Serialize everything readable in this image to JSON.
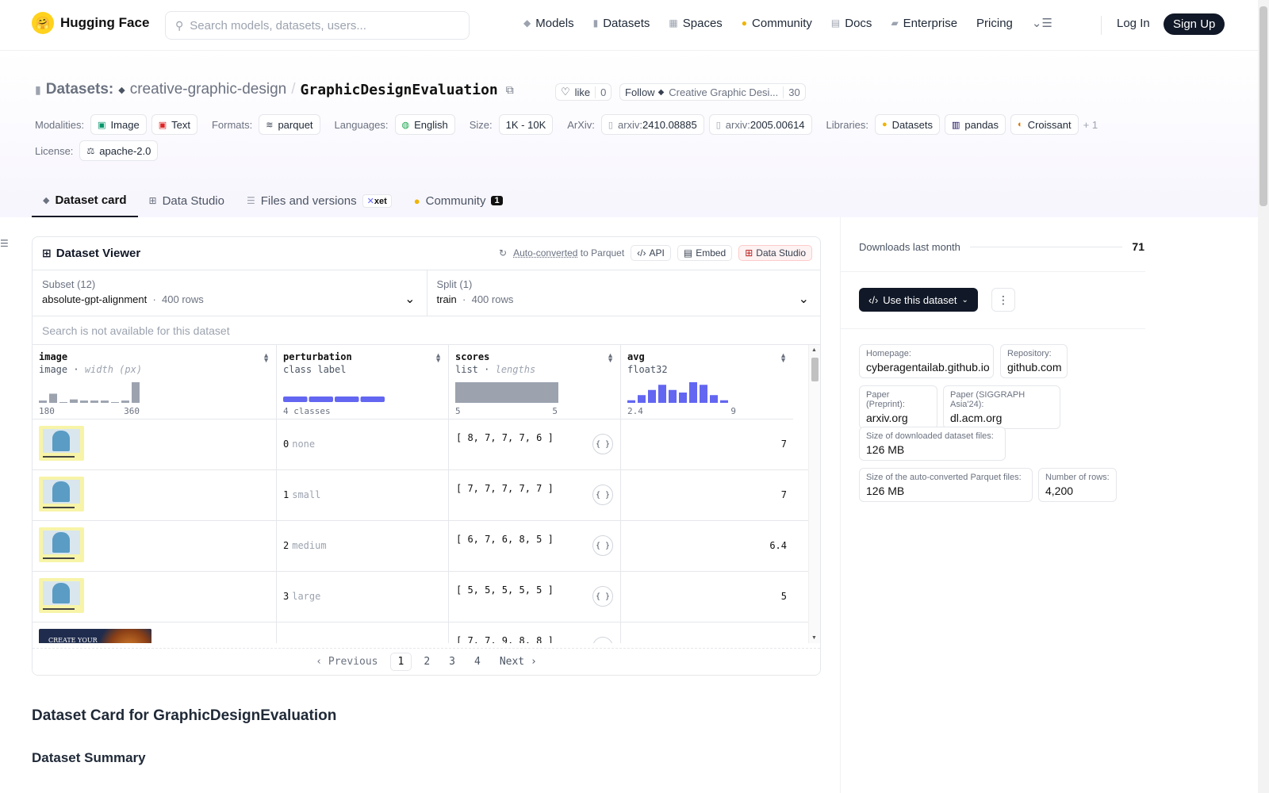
{
  "nav": {
    "brand": "Hugging Face",
    "search_placeholder": "Search models, datasets, users...",
    "links": [
      "Models",
      "Datasets",
      "Spaces",
      "Community",
      "Docs",
      "Enterprise",
      "Pricing"
    ],
    "login": "Log In",
    "signup": "Sign Up"
  },
  "repo": {
    "type_label": "Datasets:",
    "org": "creative-graphic-design",
    "name": "GraphicDesignEvaluation",
    "like_label": "like",
    "like_count": "0",
    "follow_label": "Follow",
    "follow_org": "Creative Graphic Desi...",
    "follow_count": "30"
  },
  "meta": {
    "modalities_label": "Modalities:",
    "modalities": [
      "Image",
      "Text"
    ],
    "formats_label": "Formats:",
    "formats": [
      "parquet"
    ],
    "languages_label": "Languages:",
    "languages": [
      "English"
    ],
    "size_label": "Size:",
    "size": "1K - 10K",
    "arxiv_label": "ArXiv:",
    "arxiv_prefix": "arxiv:",
    "arxiv": [
      "2410.08885",
      "2005.00614"
    ],
    "libraries_label": "Libraries:",
    "libraries": [
      "Datasets",
      "pandas",
      "Croissant"
    ],
    "libraries_more": "+ 1",
    "license_label": "License:",
    "license": "apache-2.0"
  },
  "tabs": {
    "card": "Dataset card",
    "studio": "Data Studio",
    "files": "Files and versions",
    "xet": "xet",
    "community": "Community",
    "community_count": "1"
  },
  "viewer": {
    "title": "Dataset Viewer",
    "autoconv": "Auto-converted",
    "to_parquet": "to Parquet",
    "api": "API",
    "embed": "Embed",
    "studio": "Data Studio",
    "subset_label": "Subset (12)",
    "subset_value": "absolute-gpt-alignment",
    "subset_rows": "400 rows",
    "split_label": "Split (1)",
    "split_value": "train",
    "split_rows": "400 rows",
    "search_note": "Search is not available for this dataset",
    "columns": [
      {
        "name": "image",
        "type": "image",
        "type_extra": "width (px)",
        "axis_min": "180",
        "axis_max": "360"
      },
      {
        "name": "perturbation",
        "type": "class label",
        "type_extra": "",
        "axis_min": "4 classes",
        "axis_max": ""
      },
      {
        "name": "scores",
        "type": "list",
        "type_extra": "lengths",
        "axis_min": "5",
        "axis_max": "5"
      },
      {
        "name": "avg",
        "type": "float32",
        "type_extra": "",
        "axis_min": "2.4",
        "axis_max": "9"
      }
    ],
    "image_hist": [
      1,
      4,
      0,
      1.5,
      1,
      1,
      1,
      0,
      1,
      9
    ],
    "class_hist": [
      1,
      1,
      1,
      1
    ],
    "avg_hist": [
      1,
      3,
      5,
      7,
      5,
      4,
      8,
      7,
      3,
      1
    ],
    "rows": [
      {
        "class_id": "0",
        "class_name": "none",
        "scores": "[ 8, 7, 7, 7, 6 ]",
        "avg": "7"
      },
      {
        "class_id": "1",
        "class_name": "small",
        "scores": "[ 7, 7, 7, 7, 7 ]",
        "avg": "7"
      },
      {
        "class_id": "2",
        "class_name": "medium",
        "scores": "[ 6, 7, 6, 8, 5 ]",
        "avg": "6.4"
      },
      {
        "class_id": "3",
        "class_name": "large",
        "scores": "[ 5, 5, 5, 5, 5 ]",
        "avg": "5"
      },
      {
        "class_id": "",
        "class_name": "",
        "scores": "[ 7, 7, 9, 8, 8 ]",
        "avg": ""
      }
    ],
    "thumb_text": "CREATE YOUR",
    "pager": {
      "prev": "Previous",
      "pages": [
        "1",
        "2",
        "3",
        "4"
      ],
      "next": "Next"
    }
  },
  "card": {
    "h1": "Dataset Card for GraphicDesignEvaluation",
    "h2": "Dataset Summary"
  },
  "sidebar": {
    "downloads_label": "Downloads last month",
    "downloads_value": "71",
    "use_button": "Use this dataset",
    "info": [
      {
        "k": "Homepage:",
        "v": "cyberagentailab.github.io"
      },
      {
        "k": "Repository:",
        "v": "github.com"
      },
      {
        "k": "Paper (Preprint):",
        "v": "arxiv.org"
      },
      {
        "k": "Paper (SIGGRAPH Asia'24):",
        "v": "dl.acm.org"
      },
      {
        "k": "Size of downloaded dataset files:",
        "v": "126 MB"
      },
      {
        "k": "Size of the auto-converted Parquet files:",
        "v": "126 MB"
      },
      {
        "k": "Number of rows:",
        "v": "4,200"
      }
    ]
  },
  "colors": {
    "accent": "#6366f1",
    "dark": "#111827",
    "hf_yellow": "#ffd21e"
  }
}
